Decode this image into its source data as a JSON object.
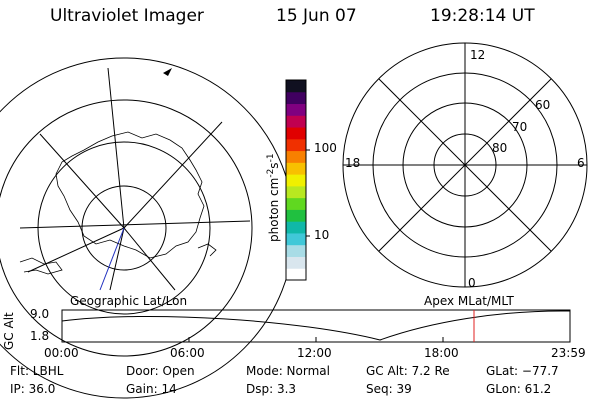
{
  "header": {
    "title": "Ultraviolet Imager",
    "date": "15 Jun 07",
    "time": "19:28:14 UT"
  },
  "geo_panel": {
    "label": "Geographic Lat/Lon"
  },
  "apex_panel": {
    "label": "Apex MLat/MLT",
    "mlt_labels": [
      "12",
      "18",
      "6",
      "0"
    ],
    "lat_labels": [
      "60",
      "70",
      "80"
    ]
  },
  "colorbar": {
    "unit_label": "photon cm",
    "unit_sup1": "-2",
    "unit_mid": "s",
    "unit_sup2": "-1",
    "tick_labels": [
      "100",
      "10"
    ],
    "colors": [
      "#ffffff",
      "#d9e6ee",
      "#a8dce6",
      "#40c8d8",
      "#10b8a8",
      "#20c040",
      "#60d820",
      "#b8e820",
      "#f0f000",
      "#f8c000",
      "#f88000",
      "#f03000",
      "#e00000",
      "#c00050",
      "#800080",
      "#400060",
      "#101020"
    ]
  },
  "altitude_strip": {
    "axis_label": "GC Alt",
    "y_ticks": [
      "9.0",
      "1.8"
    ],
    "x_ticks": [
      "00:00",
      "06:00",
      "12:00",
      "18:00",
      "23:59"
    ],
    "marker_color": "#e02020"
  },
  "info": {
    "flt": "Flt: LBHL",
    "ip": "IP: 36.0",
    "door": "Door: Open",
    "gain": "Gain: 14",
    "mode": "Mode: Normal",
    "dsp": "Dsp:      3.3",
    "gcalt": "GC Alt: 7.2 Re",
    "seq": "Seq: 39",
    "glat": "GLat: −77.7",
    "glon": "GLon:  61.2"
  }
}
